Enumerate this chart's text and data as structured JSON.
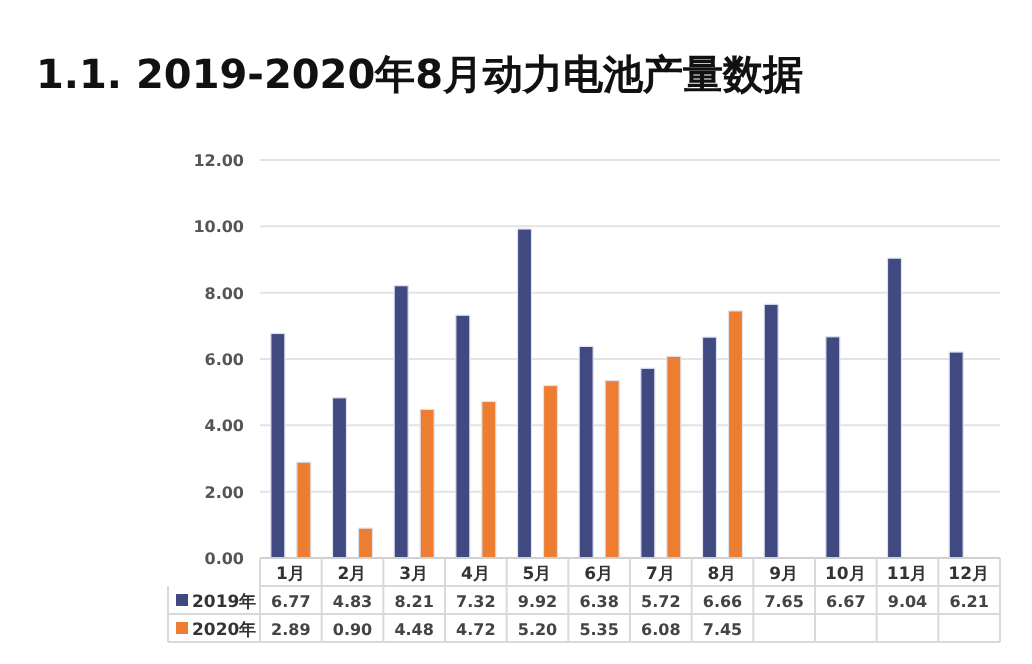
{
  "chart_data": {
    "type": "bar",
    "title": "1.1. 2019-2020年8月动力电池产量数据",
    "categories": [
      "1月",
      "2月",
      "3月",
      "4月",
      "5月",
      "6月",
      "7月",
      "8月",
      "9月",
      "10月",
      "11月",
      "12月"
    ],
    "series": [
      {
        "name": "2019年",
        "color": "#404a80",
        "values": [
          6.77,
          4.83,
          8.21,
          7.32,
          9.92,
          6.38,
          5.72,
          6.66,
          7.65,
          6.67,
          9.04,
          6.21
        ],
        "value_labels": [
          "6.77",
          "4.83",
          "8.21",
          "7.32",
          "9.92",
          "6.38",
          "5.72",
          "6.66",
          "7.65",
          "6.67",
          "9.04",
          "6.21"
        ]
      },
      {
        "name": "2020年",
        "color": "#ed7d31",
        "values": [
          2.89,
          0.9,
          4.48,
          4.72,
          5.2,
          5.35,
          6.08,
          7.45,
          null,
          null,
          null,
          null
        ],
        "value_labels": [
          "2.89",
          "0.90",
          "4.48",
          "4.72",
          "5.20",
          "5.35",
          "6.08",
          "7.45",
          null,
          null,
          null,
          null
        ]
      }
    ],
    "ylim": [
      0,
      12
    ],
    "yticks": [
      {
        "value": 0,
        "label": "0.00"
      },
      {
        "value": 2,
        "label": "2.00"
      },
      {
        "value": 4,
        "label": "4.00"
      },
      {
        "value": 6,
        "label": "6.00"
      },
      {
        "value": 8,
        "label": "8.00"
      },
      {
        "value": 10,
        "label": "10.00"
      },
      {
        "value": 12,
        "label": "12.00"
      }
    ],
    "grid": "y",
    "legend": "bottom left"
  }
}
